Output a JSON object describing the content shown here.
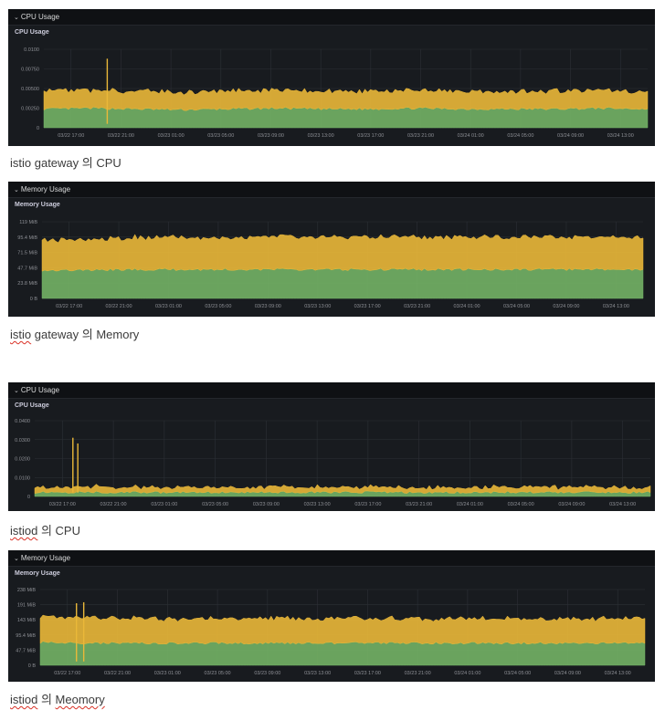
{
  "colors": {
    "background": "#181b1f",
    "header": "#0f1114",
    "series_a": "#eab839",
    "series_b": "#73b365",
    "grid": "#2c3036",
    "tick": "#8e9096"
  },
  "icons": {
    "collapse": "chevron-down-icon"
  },
  "captions": {
    "c1": "istio gateway 의 CPU",
    "c2_a": "istio",
    "c2_b": " gateway 의 Memory",
    "c3_a": "istiod",
    "c3_b": " 의 CPU",
    "c4_a": "istiod",
    "c4_b": " 의 ",
    "c4_c": "Meomory"
  },
  "panels": [
    {
      "header": "CPU Usage",
      "title": "CPU Usage"
    },
    {
      "header": "Memory Usage",
      "title": "Memory Usage"
    },
    {
      "header": "CPU Usage",
      "title": "CPU Usage"
    },
    {
      "header": "Memory Usage",
      "title": "Memory Usage"
    }
  ],
  "chart_data": [
    {
      "type": "area",
      "title": "CPU Usage",
      "stacked": true,
      "x_ticks": [
        "03/22 17:00",
        "03/22 21:00",
        "03/23 01:00",
        "03/23 05:00",
        "03/23 09:00",
        "03/23 13:00",
        "03/23 17:00",
        "03/23 21:00",
        "03/24 01:00",
        "03/24 05:00",
        "03/24 09:00",
        "03/24 13:00"
      ],
      "y_ticks": [
        "0",
        "0.00250",
        "0.00500",
        "0.00750",
        "0.0100"
      ],
      "ylim": [
        0,
        0.01
      ],
      "x_range": [
        "03/22 15:00",
        "03/24 14:30"
      ],
      "grid": true,
      "series": [
        {
          "color": "#73b365",
          "values": [
            0.0024,
            0.0025,
            0.0024,
            0.0023,
            0.0024,
            0.0025,
            0.0024,
            0.0024,
            0.0025,
            0.0024,
            0.0024,
            0.0024,
            0.0025,
            0.0024
          ]
        },
        {
          "color": "#eab839",
          "values": [
            0.0023,
            0.0022,
            0.0023,
            0.0022,
            0.0023,
            0.0023,
            0.0022,
            0.0023,
            0.0022,
            0.0023,
            0.0022,
            0.0023,
            0.0022,
            0.0022
          ]
        }
      ],
      "spikes": [
        {
          "x": 0.105,
          "top": 0.0088
        }
      ]
    },
    {
      "type": "area",
      "title": "Memory Usage",
      "stacked": true,
      "x_ticks": [
        "03/22 17:00",
        "03/22 21:00",
        "03/23 01:00",
        "03/23 05:00",
        "03/23 09:00",
        "03/23 13:00",
        "03/23 17:00",
        "03/23 21:00",
        "03/24 01:00",
        "03/24 05:00",
        "03/24 09:00",
        "03/24 13:00"
      ],
      "y_ticks": [
        "0 B",
        "23.8 MiB",
        "47.7 MiB",
        "71.5 MiB",
        "95.4 MiB",
        "119 MiB"
      ],
      "ylim": [
        0,
        119
      ],
      "x_range": [
        "03/22 15:00",
        "03/24 14:30"
      ],
      "grid": true,
      "series": [
        {
          "color": "#73b365",
          "values": [
            44,
            44,
            45,
            45,
            45,
            45,
            45,
            45,
            45,
            45,
            45,
            45,
            45,
            45
          ]
        },
        {
          "color": "#eab839",
          "values": [
            47,
            46,
            50,
            50,
            50,
            50,
            50,
            50,
            50,
            50,
            50,
            50,
            50,
            50
          ]
        }
      ]
    },
    {
      "type": "area",
      "title": "CPU Usage",
      "stacked": true,
      "x_ticks": [
        "03/22 17:00",
        "03/22 21:00",
        "03/23 01:00",
        "03/23 05:00",
        "03/23 09:00",
        "03/23 13:00",
        "03/23 17:00",
        "03/23 21:00",
        "03/24 01:00",
        "03/24 05:00",
        "03/24 09:00",
        "03/24 13:00"
      ],
      "y_ticks": [
        "0",
        "0.0100",
        "0.0200",
        "0.0300",
        "0.0400"
      ],
      "ylim": [
        0,
        0.04
      ],
      "x_range": [
        "03/22 15:00",
        "03/24 14:30"
      ],
      "grid": true,
      "series": [
        {
          "color": "#73b365",
          "values": [
            0.0022,
            0.0023,
            0.0022,
            0.0022,
            0.0023,
            0.0022,
            0.0022,
            0.0023,
            0.0022,
            0.0022,
            0.0023,
            0.0022,
            0.0022,
            0.0022
          ]
        },
        {
          "color": "#eab839",
          "values": [
            0.0025,
            0.0028,
            0.0027,
            0.0026,
            0.0027,
            0.0026,
            0.0027,
            0.0026,
            0.0027,
            0.0026,
            0.0027,
            0.0026,
            0.0026,
            0.0026
          ]
        }
      ],
      "spikes": [
        {
          "x": 0.062,
          "top": 0.031
        },
        {
          "x": 0.07,
          "top": 0.028
        }
      ]
    },
    {
      "type": "area",
      "title": "Memory Usage",
      "stacked": true,
      "x_ticks": [
        "03/22 17:00",
        "03/22 21:00",
        "03/23 01:00",
        "03/23 05:00",
        "03/23 09:00",
        "03/23 13:00",
        "03/23 17:00",
        "03/23 21:00",
        "03/24 01:00",
        "03/24 05:00",
        "03/24 09:00",
        "03/24 13:00"
      ],
      "y_ticks": [
        "0 B",
        "47.7 MiB",
        "95.4 MiB",
        "143 MiB",
        "191 MiB",
        "238 MiB"
      ],
      "ylim": [
        0,
        238
      ],
      "x_range": [
        "03/22 15:00",
        "03/24 14:30"
      ],
      "grid": true,
      "series": [
        {
          "color": "#73b365",
          "values": [
            72,
            70,
            70,
            70,
            70,
            70,
            70,
            70,
            70,
            70,
            70,
            70,
            70,
            70
          ]
        },
        {
          "color": "#eab839",
          "values": [
            78,
            80,
            78,
            76,
            76,
            77,
            76,
            76,
            76,
            77,
            76,
            76,
            76,
            77
          ]
        }
      ],
      "spikes": [
        {
          "x": 0.06,
          "top": 195
        },
        {
          "x": 0.072,
          "top": 198
        }
      ]
    }
  ]
}
